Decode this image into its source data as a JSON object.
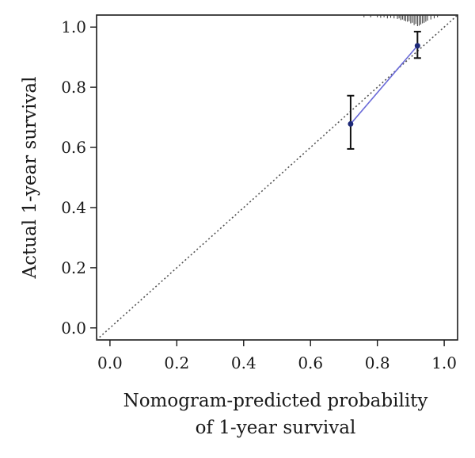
{
  "chart_data": {
    "type": "line",
    "title": "",
    "xlabel": [
      "Nomogram-predicted probability",
      "of 1-year survival"
    ],
    "ylabel": "Actual 1-year survival",
    "xlim": [
      -0.04,
      1.04
    ],
    "ylim": [
      -0.04,
      1.04
    ],
    "x_ticks": [
      0.0,
      0.2,
      0.4,
      0.6,
      0.8,
      1.0
    ],
    "x_tick_labels": [
      "0.0",
      "0.2",
      "0.4",
      "0.6",
      "0.8",
      "1.0"
    ],
    "y_ticks": [
      0.0,
      0.2,
      0.4,
      0.6,
      0.8,
      1.0
    ],
    "y_tick_labels": [
      "0.0",
      "0.2",
      "0.4",
      "0.6",
      "0.8",
      "1.0"
    ],
    "grid": false,
    "legend": "none",
    "reference_line": {
      "style": "dotted",
      "from": [
        -0.04,
        -0.04
      ],
      "to": [
        1.04,
        1.04
      ],
      "color": "#555555"
    },
    "series": [
      {
        "points": [
          {
            "x": 0.72,
            "y": 0.678,
            "lower": 0.595,
            "upper": 0.772
          },
          {
            "x": 0.92,
            "y": 0.938,
            "lower": 0.897,
            "upper": 0.985
          }
        ],
        "line_color": "#6a6ad8",
        "point_color": "#1e2a78",
        "error_bar_color": "#111111"
      }
    ],
    "rug_x": [
      0.76,
      0.78,
      0.8,
      0.81,
      0.82,
      0.83,
      0.84,
      0.85,
      0.86,
      0.865,
      0.87,
      0.875,
      0.88,
      0.885,
      0.89,
      0.895,
      0.9,
      0.905,
      0.91,
      0.915,
      0.92,
      0.925,
      0.93,
      0.935,
      0.94,
      0.945,
      0.95,
      0.96,
      0.97,
      0.98
    ],
    "rug_heights": [
      0.2,
      0.2,
      0.2,
      0.25,
      0.2,
      0.3,
      0.25,
      0.3,
      0.35,
      0.3,
      0.45,
      0.4,
      0.5,
      0.55,
      0.6,
      0.55,
      0.75,
      0.7,
      0.9,
      0.8,
      1.0,
      0.95,
      0.85,
      0.75,
      0.7,
      0.6,
      0.5,
      0.4,
      0.3,
      0.2
    ]
  }
}
